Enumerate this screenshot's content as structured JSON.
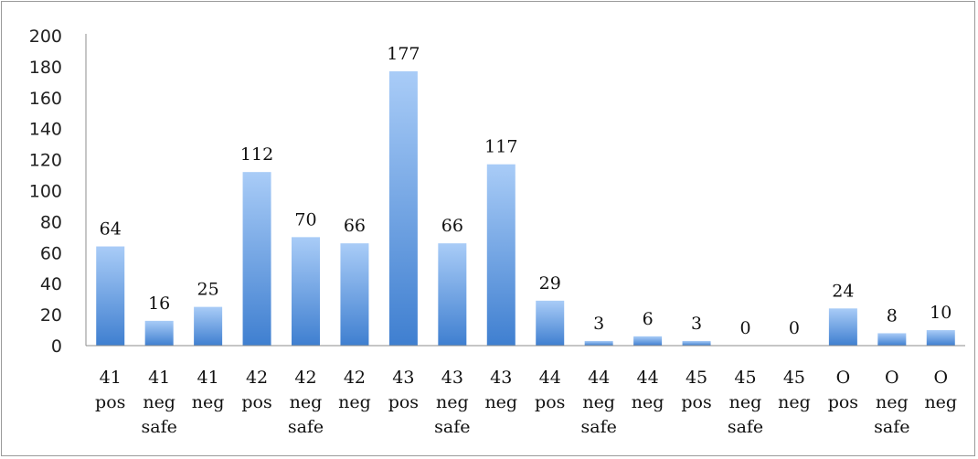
{
  "chart_data": {
    "type": "bar",
    "categories": [
      [
        "41",
        "pos"
      ],
      [
        "41",
        "neg",
        "safe"
      ],
      [
        "41",
        "neg"
      ],
      [
        "42",
        "pos"
      ],
      [
        "42",
        "neg",
        "safe"
      ],
      [
        "42",
        "neg"
      ],
      [
        "43",
        "pos"
      ],
      [
        "43",
        "neg",
        "safe"
      ],
      [
        "43",
        "neg"
      ],
      [
        "44",
        "pos"
      ],
      [
        "44",
        "neg",
        "safe"
      ],
      [
        "44",
        "neg"
      ],
      [
        "45",
        "pos"
      ],
      [
        "45",
        "neg",
        "safe"
      ],
      [
        "45",
        "neg"
      ],
      [
        "O",
        "pos"
      ],
      [
        "O",
        "neg",
        "safe"
      ],
      [
        "O",
        "neg"
      ]
    ],
    "values": [
      64,
      16,
      25,
      112,
      70,
      66,
      177,
      66,
      117,
      29,
      3,
      6,
      3,
      0,
      0,
      24,
      8,
      10
    ],
    "data_labels": [
      "64",
      "16",
      "25",
      "112",
      "70",
      "66",
      "177",
      "66",
      "117",
      "29",
      "3",
      "6",
      "3",
      "0",
      "0",
      "24",
      "8",
      "10"
    ],
    "ylim": [
      0,
      200
    ],
    "yticks": [
      "0",
      "20",
      "40",
      "60",
      "80",
      "100",
      "120",
      "140",
      "160",
      "180",
      "200"
    ],
    "title": "",
    "xlabel": "",
    "ylabel": "",
    "grid": false,
    "legend": "none",
    "colors": {
      "bar_top": "#a9ccf7",
      "bar_bottom": "#3f7fd0",
      "axis": "#8c8c8c"
    }
  }
}
